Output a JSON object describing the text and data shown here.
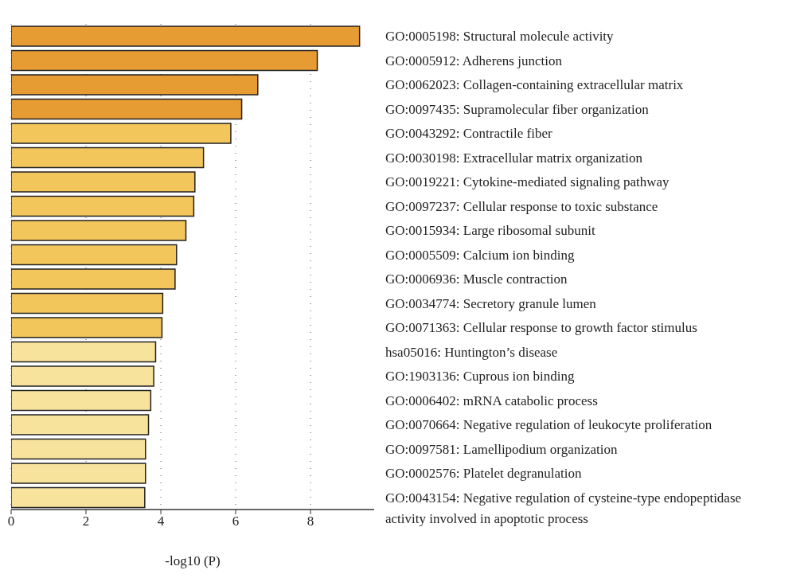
{
  "chart_data": {
    "type": "bar",
    "orientation": "horizontal",
    "xlabel": "-log10 (P)",
    "categories": [
      "GO:0005198: Structural molecule activity",
      "GO:0005912: Adherens junction",
      "GO:0062023: Collagen-containing extracellular matrix",
      "GO:0097435: Supramolecular fiber organization",
      "GO:0043292: Contractile fiber",
      "GO:0030198: Extracellular matrix organization",
      "GO:0019221: Cytokine-mediated signaling pathway",
      "GO:0097237: Cellular response to toxic substance",
      "GO:0015934: Large ribosomal subunit",
      "GO:0005509: Calcium ion binding",
      "GO:0006936: Muscle contraction",
      "GO:0034774: Secretory granule lumen",
      "GO:0071363: Cellular response to growth factor stimulus",
      "hsa05016: Huntington’s disease",
      "GO:1903136: Cuprous ion binding",
      "GO:0006402: mRNA catabolic process",
      "GO:0070664: Negative regulation of leukocyte proliferation",
      "GO:0097581: Lamellipodium organization",
      "GO:0002576: Platelet degranulation",
      "GO:0043154: Negative regulation of cysteine-type endopeptidase activity involved in apoptotic process"
    ],
    "values": [
      9.31,
      8.18,
      6.59,
      6.16,
      5.87,
      5.14,
      4.91,
      4.88,
      4.67,
      4.42,
      4.38,
      4.05,
      4.03,
      3.86,
      3.81,
      3.73,
      3.67,
      3.59,
      3.59,
      3.57
    ],
    "colors": [
      "#e69b33",
      "#e69b33",
      "#e69b33",
      "#e69b33",
      "#f2c65a",
      "#f2c65a",
      "#f2c65a",
      "#f2c65a",
      "#f2c65a",
      "#f2c65a",
      "#f2c65a",
      "#f2c65a",
      "#f2c65a",
      "#f8e39c",
      "#f8e39c",
      "#f8e39c",
      "#f8e39c",
      "#f8e39c",
      "#f8e39c",
      "#f8e39c"
    ],
    "xlim": [
      0,
      9.7
    ],
    "xticks": [
      0,
      2,
      4,
      6,
      8
    ],
    "grid": "x"
  }
}
